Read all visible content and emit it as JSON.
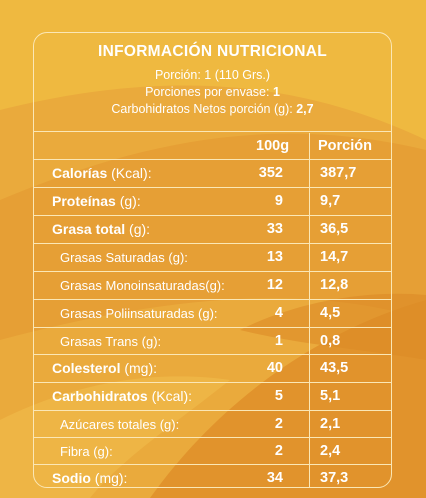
{
  "title": "INFORMACIÓN NUTRICIONAL",
  "serving": "Porción: 1 (110 Grs.)",
  "servings_per_container_label": "Porciones por envase:",
  "servings_per_container_value": "1",
  "net_carbs_label": "Carbohidratos Netos porción (g):",
  "net_carbs_value": "2,7",
  "col_100g": "100g",
  "col_portion": "Porción",
  "rows": [
    {
      "name": "Calorías",
      "unit": " (Kcal):",
      "v100": "352",
      "vport": "387,7"
    },
    {
      "name": "Proteínas",
      "unit": " (g):",
      "v100": "9",
      "vport": "9,7"
    },
    {
      "name": "Grasa total",
      "unit": " (g):",
      "v100": "33",
      "vport": "36,5"
    },
    {
      "name": "Grasas Saturadas (g):",
      "unit": "",
      "v100": "13",
      "vport": "14,7"
    },
    {
      "name": "Grasas Monoinsaturadas(g):",
      "unit": "",
      "v100": "12",
      "vport": "12,8"
    },
    {
      "name": "Grasas Poliinsaturadas (g):",
      "unit": "",
      "v100": "4",
      "vport": "4,5"
    },
    {
      "name": "Grasas Trans (g):",
      "unit": "",
      "v100": "1",
      "vport": "0,8"
    },
    {
      "name": "Colesterol",
      "unit": " (mg):",
      "v100": "40",
      "vport": "43,5"
    },
    {
      "name": "Carbohidratos",
      "unit": " (Kcal):",
      "v100": "5",
      "vport": "5,1"
    },
    {
      "name": "Azúcares totales (g):",
      "unit": "",
      "v100": "2",
      "vport": "2,1"
    },
    {
      "name": "Fibra (g):",
      "unit": "",
      "v100": "2",
      "vport": "2,4"
    },
    {
      "name": "Sodio",
      "unit": " (mg):",
      "v100": "34",
      "vport": "37,3"
    }
  ]
}
